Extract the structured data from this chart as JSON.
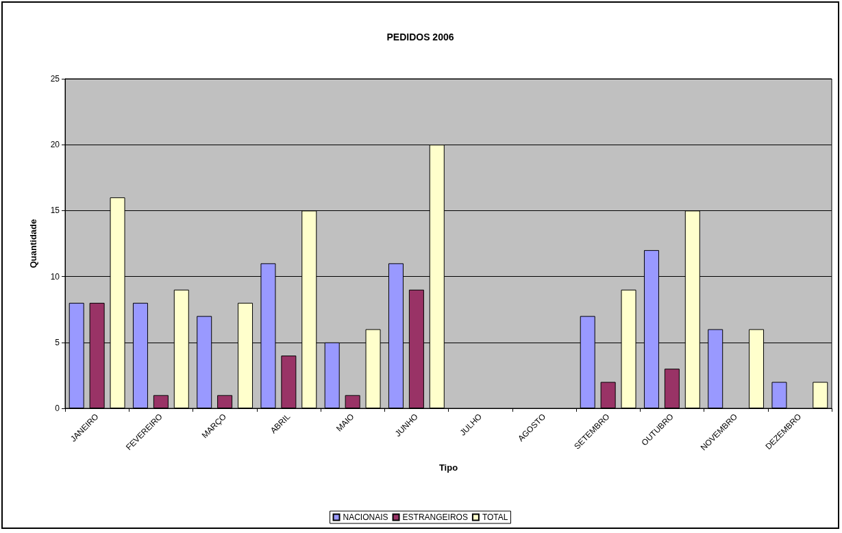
{
  "chart_data": {
    "type": "bar",
    "title": "PEDIDOS 2006",
    "xlabel": "Tipo",
    "ylabel": "Quantidade",
    "categories": [
      "JANEIRO",
      "FEVEREIRO",
      "MARÇO",
      "ABRIL",
      "MAIO",
      "JUNHO",
      "JULHO",
      "AGOSTO",
      "SETEMBRO",
      "OUTUBRO",
      "NOVEMBRO",
      "DEZEMBRO"
    ],
    "series": [
      {
        "name": "NACIONAIS",
        "color": "#9999ff",
        "values": [
          8,
          8,
          7,
          11,
          5,
          11,
          null,
          null,
          7,
          12,
          6,
          2
        ]
      },
      {
        "name": "ESTRANGEIROS",
        "color": "#993366",
        "values": [
          8,
          1,
          1,
          4,
          1,
          9,
          null,
          null,
          2,
          3,
          null,
          null
        ]
      },
      {
        "name": "TOTAL",
        "color": "#ffffcc",
        "values": [
          16,
          9,
          8,
          15,
          6,
          20,
          null,
          null,
          9,
          15,
          6,
          2
        ]
      }
    ],
    "ylim": [
      0,
      25
    ],
    "yticks": [
      0,
      5,
      10,
      15,
      20,
      25
    ],
    "grid": "y",
    "legend": "bottom"
  }
}
